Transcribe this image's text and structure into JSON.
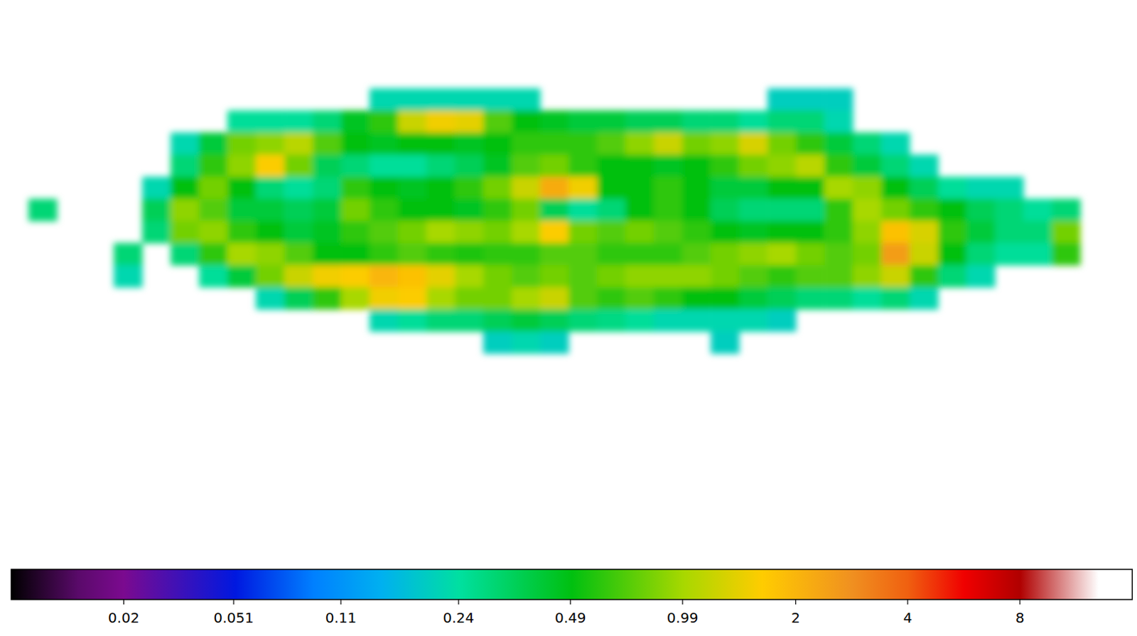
{
  "chart_data": {
    "type": "heatmap",
    "log": true,
    "tick_labels": false,
    "colorbar_range": [
      0.004,
      16
    ],
    "colorbar_ticks": [
      0.02,
      0.051,
      0.11,
      0.24,
      0.49,
      0.99,
      2,
      4,
      8
    ],
    "cells": [
      [
        null,
        null,
        null,
        null,
        null,
        null,
        null,
        null,
        null,
        null,
        null,
        null,
        null,
        null,
        null,
        null,
        null,
        null,
        null,
        null,
        null,
        null,
        null,
        null,
        null,
        null,
        null,
        null,
        null,
        null,
        null,
        null,
        null,
        null,
        null,
        null,
        null,
        null,
        null,
        null
      ],
      [
        null,
        null,
        null,
        null,
        null,
        null,
        null,
        null,
        null,
        null,
        null,
        null,
        null,
        null,
        null,
        null,
        null,
        null,
        null,
        null,
        null,
        null,
        null,
        null,
        null,
        null,
        null,
        null,
        null,
        null,
        null,
        null,
        null,
        null,
        null,
        null,
        null,
        null,
        null,
        null
      ],
      [
        null,
        null,
        null,
        null,
        null,
        null,
        null,
        null,
        null,
        null,
        null,
        null,
        null,
        null,
        null,
        null,
        null,
        null,
        null,
        null,
        null,
        null,
        null,
        null,
        null,
        null,
        null,
        null,
        null,
        null,
        null,
        null,
        null,
        null,
        null,
        null,
        null,
        null,
        null,
        null
      ],
      [
        null,
        null,
        null,
        null,
        null,
        null,
        null,
        null,
        null,
        null,
        null,
        null,
        null,
        null,
        null,
        null,
        null,
        null,
        null,
        null,
        null,
        null,
        null,
        null,
        null,
        null,
        null,
        null,
        null,
        null,
        null,
        null,
        null,
        null,
        null,
        null,
        null,
        null,
        null,
        null
      ],
      [
        null,
        null,
        null,
        null,
        null,
        null,
        null,
        null,
        null,
        null,
        null,
        null,
        null,
        0.22,
        0.22,
        0.22,
        0.22,
        0.22,
        0.22,
        null,
        null,
        null,
        null,
        null,
        null,
        null,
        null,
        0.2,
        0.2,
        0.2,
        null,
        null,
        null,
        null,
        null,
        null,
        null,
        null,
        null,
        null
      ],
      [
        null,
        null,
        null,
        null,
        null,
        null,
        null,
        null,
        0.25,
        0.25,
        0.25,
        0.3,
        0.45,
        0.6,
        1.2,
        1.5,
        1.4,
        0.7,
        0.5,
        0.45,
        0.4,
        0.4,
        0.35,
        0.35,
        0.3,
        0.3,
        0.25,
        0.3,
        0.3,
        0.22,
        null,
        null,
        null,
        null,
        null,
        null,
        null,
        null,
        null,
        null
      ],
      [
        null,
        null,
        null,
        null,
        null,
        null,
        0.22,
        0.4,
        0.8,
        0.9,
        1.1,
        0.7,
        0.5,
        0.45,
        0.5,
        0.5,
        0.45,
        0.5,
        0.6,
        0.6,
        0.6,
        0.7,
        0.9,
        1.2,
        0.8,
        0.9,
        1.3,
        0.8,
        0.6,
        0.4,
        0.3,
        0.22,
        null,
        null,
        null,
        null,
        null,
        null,
        null,
        null
      ],
      [
        null,
        null,
        null,
        null,
        null,
        null,
        0.3,
        0.6,
        0.9,
        1.6,
        0.8,
        0.35,
        0.3,
        0.25,
        0.25,
        0.3,
        0.35,
        0.45,
        0.7,
        0.8,
        0.6,
        0.5,
        0.5,
        0.45,
        0.5,
        0.6,
        0.8,
        0.9,
        1.1,
        0.6,
        0.4,
        0.3,
        0.22,
        null,
        null,
        null,
        null,
        null,
        null,
        null
      ],
      [
        null,
        null,
        null,
        null,
        null,
        0.22,
        0.5,
        0.8,
        0.5,
        0.3,
        0.25,
        0.3,
        0.6,
        0.5,
        0.45,
        0.5,
        0.6,
        0.8,
        1.2,
        2.2,
        1.5,
        0.5,
        0.5,
        0.6,
        0.5,
        0.4,
        0.4,
        0.5,
        0.5,
        1.0,
        0.9,
        0.5,
        0.35,
        0.25,
        0.22,
        0.22,
        null,
        null,
        null,
        null
      ],
      [
        null,
        0.3,
        null,
        null,
        null,
        0.35,
        0.9,
        0.7,
        0.4,
        0.4,
        0.35,
        0.4,
        0.8,
        0.6,
        0.5,
        0.5,
        0.45,
        0.6,
        0.8,
        0.35,
        0.25,
        0.3,
        0.5,
        0.6,
        0.5,
        0.35,
        0.3,
        0.3,
        0.3,
        0.6,
        1.0,
        0.8,
        0.6,
        0.5,
        0.35,
        0.3,
        0.25,
        0.3,
        null,
        null
      ],
      [
        null,
        null,
        null,
        null,
        null,
        0.3,
        0.8,
        0.9,
        0.6,
        0.5,
        0.4,
        0.45,
        0.6,
        0.7,
        0.8,
        1.0,
        0.9,
        0.8,
        1.0,
        1.6,
        0.8,
        0.7,
        0.8,
        0.7,
        0.6,
        0.5,
        0.45,
        0.5,
        0.5,
        0.6,
        0.9,
        1.8,
        1.3,
        0.6,
        0.4,
        0.3,
        0.3,
        0.8,
        null,
        null
      ],
      [
        null,
        null,
        null,
        null,
        0.3,
        null,
        0.3,
        0.6,
        1.0,
        0.9,
        0.7,
        0.5,
        0.5,
        0.6,
        0.7,
        0.6,
        0.55,
        0.6,
        0.6,
        0.7,
        0.7,
        0.6,
        0.6,
        0.6,
        0.7,
        0.8,
        0.9,
        1.0,
        0.8,
        0.7,
        0.8,
        2.5,
        1.2,
        0.5,
        0.3,
        0.25,
        0.25,
        0.6,
        null,
        null
      ],
      [
        null,
        null,
        null,
        null,
        0.22,
        null,
        null,
        0.25,
        0.4,
        0.8,
        1.2,
        1.5,
        1.6,
        2.0,
        1.8,
        1.4,
        1.0,
        0.8,
        0.7,
        0.8,
        0.7,
        0.8,
        0.9,
        0.9,
        0.9,
        0.8,
        0.7,
        0.6,
        0.7,
        0.7,
        0.9,
        1.2,
        0.6,
        0.3,
        0.22,
        null,
        null,
        null,
        null,
        null
      ],
      [
        null,
        null,
        null,
        null,
        null,
        null,
        null,
        null,
        null,
        0.22,
        0.35,
        0.6,
        1.0,
        1.5,
        1.6,
        1.0,
        0.8,
        0.8,
        1.0,
        1.2,
        0.7,
        0.6,
        0.7,
        0.6,
        0.5,
        0.5,
        0.4,
        0.35,
        0.3,
        0.3,
        0.25,
        0.3,
        0.22,
        null,
        null,
        null,
        null,
        null,
        null,
        null
      ],
      [
        null,
        null,
        null,
        null,
        null,
        null,
        null,
        null,
        null,
        null,
        null,
        null,
        null,
        0.22,
        0.25,
        0.3,
        0.3,
        0.35,
        0.4,
        0.35,
        0.3,
        0.28,
        0.25,
        0.22,
        0.22,
        0.22,
        0.22,
        0.2,
        null,
        null,
        null,
        null,
        null,
        null,
        null,
        null,
        null,
        null,
        null,
        null
      ],
      [
        null,
        null,
        null,
        null,
        null,
        null,
        null,
        null,
        null,
        null,
        null,
        null,
        null,
        null,
        null,
        null,
        null,
        0.2,
        0.22,
        0.2,
        null,
        null,
        null,
        null,
        null,
        0.2,
        null,
        null,
        null,
        null,
        null,
        null,
        null,
        null,
        null,
        null,
        null,
        null,
        null,
        null
      ],
      [
        null,
        null,
        null,
        null,
        null,
        null,
        null,
        null,
        null,
        null,
        null,
        null,
        null,
        null,
        null,
        null,
        null,
        null,
        null,
        null,
        null,
        null,
        null,
        null,
        null,
        null,
        null,
        null,
        null,
        null,
        null,
        null,
        null,
        null,
        null,
        null,
        null,
        null,
        null,
        null
      ],
      [
        null,
        null,
        null,
        null,
        null,
        null,
        null,
        null,
        null,
        null,
        null,
        null,
        null,
        null,
        null,
        null,
        null,
        null,
        null,
        null,
        null,
        null,
        null,
        null,
        null,
        null,
        null,
        null,
        null,
        null,
        null,
        null,
        null,
        null,
        null,
        null,
        null,
        null,
        null,
        null
      ],
      [
        null,
        null,
        null,
        null,
        null,
        null,
        null,
        null,
        null,
        null,
        null,
        null,
        null,
        null,
        null,
        null,
        null,
        null,
        null,
        null,
        null,
        null,
        null,
        null,
        null,
        null,
        null,
        null,
        null,
        null,
        null,
        null,
        null,
        null,
        null,
        null,
        null,
        null,
        null,
        null
      ],
      [
        null,
        null,
        null,
        null,
        null,
        null,
        null,
        null,
        null,
        null,
        null,
        null,
        null,
        null,
        null,
        null,
        null,
        null,
        null,
        null,
        null,
        null,
        null,
        null,
        null,
        null,
        null,
        null,
        null,
        null,
        null,
        null,
        null,
        null,
        null,
        null,
        null,
        null,
        null,
        null
      ]
    ]
  }
}
